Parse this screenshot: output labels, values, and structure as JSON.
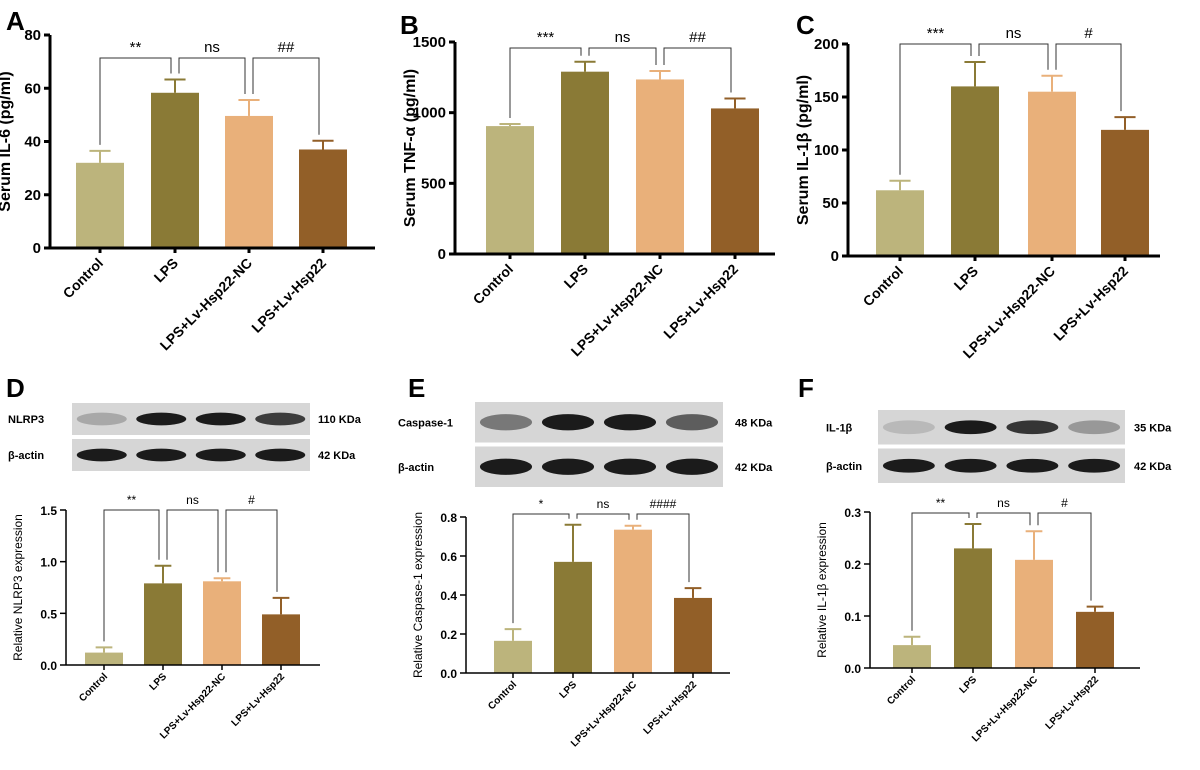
{
  "groups": [
    "Control",
    "LPS",
    "LPS+Lv-Hsp22-NC",
    "LPS+Lv-Hsp22"
  ],
  "colors": [
    "#bcb47c",
    "#8a7a36",
    "#e9b07a",
    "#925f28"
  ],
  "chart_data": [
    {
      "panel": "A",
      "type": "bar",
      "ylabel": "Serum IL-6 (pg/ml)",
      "ylim": [
        0,
        80
      ],
      "yticks": [
        "0",
        "20",
        "40",
        "60",
        "80"
      ],
      "categories": [
        "Control",
        "LPS",
        "LPS+Lv-Hsp22-NC",
        "LPS+Lv-Hsp22"
      ],
      "values": [
        32,
        58.3,
        49.6,
        37
      ],
      "errors": [
        4.5,
        5,
        6,
        3.3
      ],
      "annotations": [
        {
          "pair": [
            0,
            1
          ],
          "label": "**"
        },
        {
          "pair": [
            1,
            2
          ],
          "label": "ns"
        },
        {
          "pair": [
            2,
            3
          ],
          "label": "##"
        }
      ]
    },
    {
      "panel": "B",
      "type": "bar",
      "ylabel": "Serum TNF-α (pg/ml)",
      "ylim": [
        0,
        1500
      ],
      "yticks": [
        "0",
        "500",
        "1000",
        "1500"
      ],
      "categories": [
        "Control",
        "LPS",
        "LPS+Lv-Hsp22-NC",
        "LPS+Lv-Hsp22"
      ],
      "values": [
        905,
        1290,
        1235,
        1030
      ],
      "errors": [
        15,
        70,
        60,
        70
      ],
      "annotations": [
        {
          "pair": [
            0,
            1
          ],
          "label": "***"
        },
        {
          "pair": [
            1,
            2
          ],
          "label": "ns"
        },
        {
          "pair": [
            2,
            3
          ],
          "label": "##"
        }
      ]
    },
    {
      "panel": "C",
      "type": "bar",
      "ylabel": "Serum IL-1β (pg/ml)",
      "ylim": [
        0,
        200
      ],
      "yticks": [
        "0",
        "50",
        "100",
        "150",
        "200"
      ],
      "categories": [
        "Control",
        "LPS",
        "LPS+Lv-Hsp22-NC",
        "LPS+Lv-Hsp22"
      ],
      "values": [
        62,
        160,
        155,
        119
      ],
      "errors": [
        9,
        23,
        15,
        12
      ],
      "annotations": [
        {
          "pair": [
            0,
            1
          ],
          "label": "***"
        },
        {
          "pair": [
            1,
            2
          ],
          "label": "ns"
        },
        {
          "pair": [
            2,
            3
          ],
          "label": "#"
        }
      ]
    },
    {
      "panel": "D",
      "type": "bar",
      "ylabel": "Relative NLRP3 expression",
      "ylim": [
        0,
        1.5
      ],
      "yticks": [
        "0.0",
        "0.5",
        "1.0",
        "1.5"
      ],
      "categories": [
        "Control",
        "LPS",
        "LPS+Lv-Hsp22-NC",
        "LPS+Lv-Hsp22"
      ],
      "values": [
        0.12,
        0.79,
        0.81,
        0.49
      ],
      "errors": [
        0.05,
        0.17,
        0.03,
        0.16
      ],
      "annotations": [
        {
          "pair": [
            0,
            1
          ],
          "label": "**"
        },
        {
          "pair": [
            1,
            2
          ],
          "label": "ns"
        },
        {
          "pair": [
            2,
            3
          ],
          "label": "#"
        }
      ],
      "blot": {
        "rows": [
          {
            "protein": "NLRP3",
            "size": "110 KDa"
          },
          {
            "protein": "β-actin",
            "size": "42 KDa"
          }
        ]
      }
    },
    {
      "panel": "E",
      "type": "bar",
      "ylabel": "Relative Caspase-1 expression",
      "ylim": [
        0,
        0.8
      ],
      "yticks": [
        "0.0",
        "0.2",
        "0.4",
        "0.6",
        "0.8"
      ],
      "categories": [
        "Control",
        "LPS",
        "LPS+Lv-Hsp22-NC",
        "LPS+Lv-Hsp22"
      ],
      "values": [
        0.165,
        0.57,
        0.735,
        0.385
      ],
      "errors": [
        0.06,
        0.19,
        0.02,
        0.05
      ],
      "annotations": [
        {
          "pair": [
            0,
            1
          ],
          "label": "*"
        },
        {
          "pair": [
            1,
            2
          ],
          "label": "ns"
        },
        {
          "pair": [
            2,
            3
          ],
          "label": "####"
        }
      ],
      "blot": {
        "rows": [
          {
            "protein": "Caspase-1",
            "size": "48 KDa"
          },
          {
            "protein": "β-actin",
            "size": "42 KDa"
          }
        ]
      }
    },
    {
      "panel": "F",
      "type": "bar",
      "ylabel": "Relative IL-1β expression",
      "ylim": [
        0,
        0.3
      ],
      "yticks": [
        "0.0",
        "0.1",
        "0.2",
        "0.3"
      ],
      "categories": [
        "Control",
        "LPS",
        "LPS+Lv-Hsp22-NC",
        "LPS+Lv-Hsp22"
      ],
      "values": [
        0.044,
        0.23,
        0.208,
        0.108
      ],
      "errors": [
        0.016,
        0.047,
        0.055,
        0.01
      ],
      "annotations": [
        {
          "pair": [
            0,
            1
          ],
          "label": "**"
        },
        {
          "pair": [
            1,
            2
          ],
          "label": "ns"
        },
        {
          "pair": [
            2,
            3
          ],
          "label": "#"
        }
      ],
      "blot": {
        "rows": [
          {
            "protein": "IL-1β",
            "size": "35 KDa"
          },
          {
            "protein": "β-actin",
            "size": "42 KDa"
          }
        ]
      }
    }
  ]
}
